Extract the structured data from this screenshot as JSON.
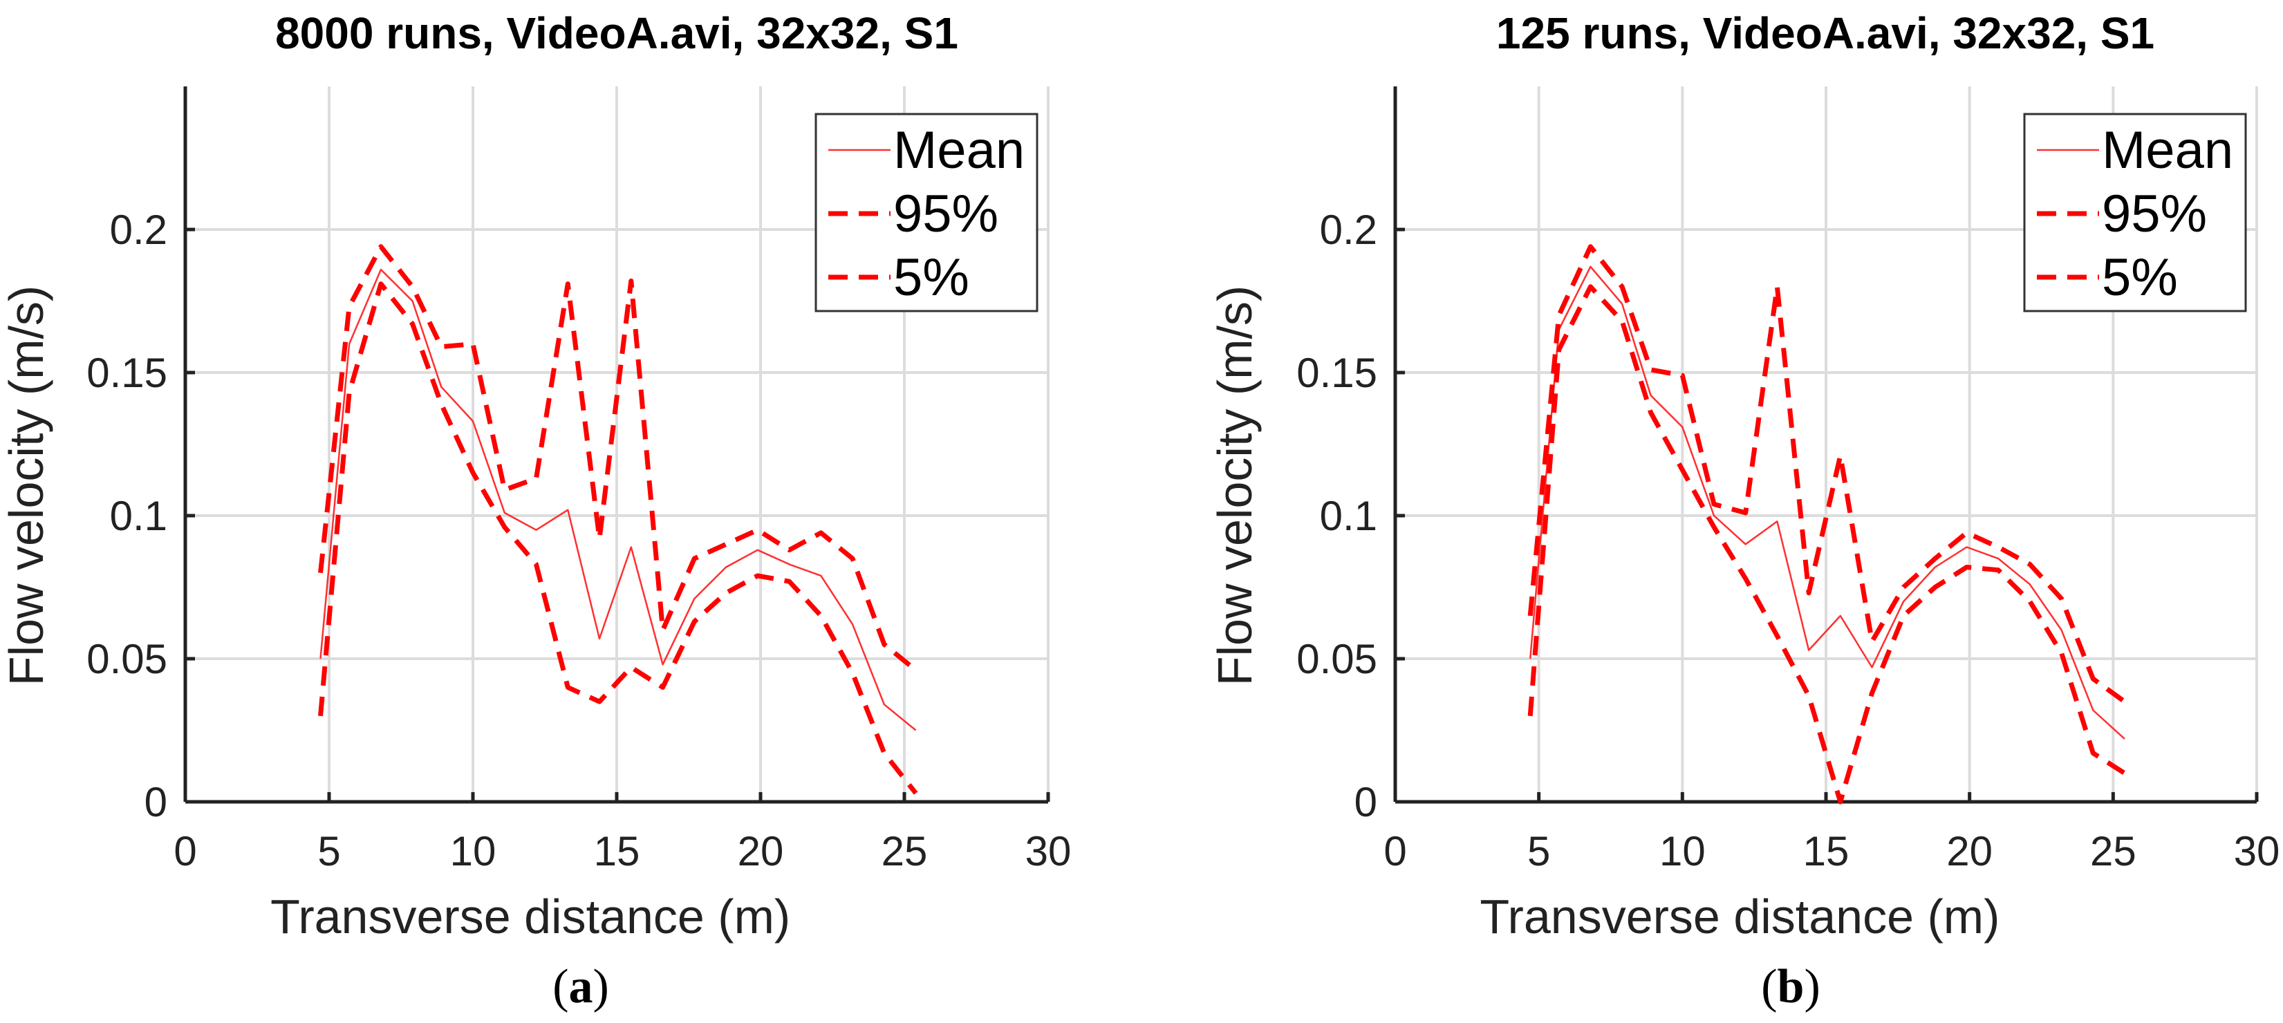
{
  "chart_data": [
    {
      "type": "line",
      "title": "8000 runs, VideoA.avi, 32x32, S1",
      "xlabel": "Transverse distance (m)",
      "ylabel": "Flow velocity (m/s)",
      "xlim": [
        0,
        30
      ],
      "ylim": [
        0,
        0.25
      ],
      "xticks": [
        0,
        5,
        10,
        15,
        20,
        25,
        30
      ],
      "yticks": [
        0,
        0.05,
        0.1,
        0.15,
        0.2
      ],
      "xtick_labels": [
        "0",
        "5",
        "10",
        "15",
        "20",
        "25",
        "30"
      ],
      "ytick_labels": [
        "0",
        "0.05",
        "0.1",
        "0.15",
        "0.2"
      ],
      "grid": true,
      "legend_position": "top-right",
      "caption_label": "a",
      "caption": "(a)",
      "series": [
        {
          "name": "Mean",
          "style": "solid",
          "color": "#ff3030",
          "x": [
            4.7,
            5.7,
            6.8,
            7.9,
            8.9,
            10.0,
            11.1,
            12.2,
            13.3,
            14.4,
            15.5,
            16.6,
            17.7,
            18.8,
            19.9,
            21.0,
            22.1,
            23.2,
            24.3,
            25.4
          ],
          "y": [
            0.05,
            0.16,
            0.186,
            0.175,
            0.145,
            0.133,
            0.101,
            0.095,
            0.102,
            0.057,
            0.089,
            0.048,
            0.071,
            0.082,
            0.088,
            0.083,
            0.079,
            0.062,
            0.034,
            0.025
          ]
        },
        {
          "name": "95%",
          "style": "dashed",
          "color": "#ff0000",
          "x": [
            4.7,
            5.7,
            6.8,
            7.9,
            8.9,
            10.0,
            11.1,
            12.2,
            13.3,
            14.4,
            15.5,
            16.6,
            17.7,
            18.8,
            19.9,
            21.0,
            22.1,
            23.2,
            24.3,
            25.4
          ],
          "y": [
            0.08,
            0.173,
            0.194,
            0.18,
            0.159,
            0.16,
            0.109,
            0.113,
            0.181,
            0.092,
            0.182,
            0.06,
            0.085,
            0.09,
            0.095,
            0.088,
            0.094,
            0.085,
            0.055,
            0.046
          ]
        },
        {
          "name": "5%",
          "style": "dashed",
          "color": "#ff0000",
          "x": [
            4.7,
            5.7,
            6.8,
            7.9,
            8.9,
            10.0,
            11.1,
            12.2,
            13.3,
            14.4,
            15.5,
            16.6,
            17.7,
            18.8,
            19.9,
            21.0,
            22.1,
            23.2,
            24.3,
            25.4
          ],
          "y": [
            0.03,
            0.143,
            0.181,
            0.167,
            0.139,
            0.115,
            0.096,
            0.083,
            0.04,
            0.035,
            0.047,
            0.04,
            0.063,
            0.073,
            0.079,
            0.077,
            0.065,
            0.045,
            0.017,
            0.003
          ]
        }
      ]
    },
    {
      "type": "line",
      "title": "125 runs, VideoA.avi, 32x32, S1",
      "xlabel": "Transverse distance (m)",
      "ylabel": "Flow velocity (m/s)",
      "xlim": [
        0,
        30
      ],
      "ylim": [
        0,
        0.25
      ],
      "xticks": [
        0,
        5,
        10,
        15,
        20,
        25,
        30
      ],
      "yticks": [
        0,
        0.05,
        0.1,
        0.15,
        0.2
      ],
      "xtick_labels": [
        "0",
        "5",
        "10",
        "15",
        "20",
        "25",
        "30"
      ],
      "ytick_labels": [
        "0",
        "0.05",
        "0.1",
        "0.15",
        "0.2"
      ],
      "grid": true,
      "legend_position": "top-right",
      "caption_label": "b",
      "caption": "(b)",
      "series": [
        {
          "name": "Mean",
          "style": "solid",
          "color": "#ff3030",
          "x": [
            4.7,
            5.7,
            6.8,
            7.9,
            8.9,
            10.0,
            11.1,
            12.2,
            13.3,
            14.4,
            15.5,
            16.6,
            17.7,
            18.8,
            19.9,
            21.0,
            22.1,
            23.2,
            24.3,
            25.4
          ],
          "y": [
            0.05,
            0.165,
            0.187,
            0.174,
            0.142,
            0.131,
            0.1,
            0.09,
            0.098,
            0.053,
            0.065,
            0.047,
            0.07,
            0.082,
            0.089,
            0.085,
            0.076,
            0.06,
            0.032,
            0.022
          ]
        },
        {
          "name": "95%",
          "style": "dashed",
          "color": "#ff0000",
          "x": [
            4.7,
            5.7,
            6.8,
            7.9,
            8.9,
            10.0,
            11.1,
            12.2,
            13.3,
            14.4,
            15.5,
            16.6,
            17.7,
            18.8,
            19.9,
            21.0,
            22.1,
            23.2,
            24.3,
            25.4
          ],
          "y": [
            0.065,
            0.17,
            0.194,
            0.18,
            0.151,
            0.149,
            0.104,
            0.101,
            0.18,
            0.073,
            0.121,
            0.056,
            0.075,
            0.085,
            0.094,
            0.089,
            0.083,
            0.071,
            0.043,
            0.035
          ]
        },
        {
          "name": "5%",
          "style": "dashed",
          "color": "#ff0000",
          "x": [
            4.7,
            5.7,
            6.8,
            7.9,
            8.9,
            10.0,
            11.1,
            12.2,
            13.3,
            14.4,
            15.5,
            16.6,
            17.7,
            18.8,
            19.9,
            21.0,
            22.1,
            23.2,
            24.3,
            25.4
          ],
          "y": [
            0.03,
            0.158,
            0.18,
            0.168,
            0.136,
            0.116,
            0.096,
            0.078,
            0.058,
            0.037,
            0.0,
            0.038,
            0.065,
            0.075,
            0.082,
            0.081,
            0.07,
            0.052,
            0.017,
            0.01
          ]
        }
      ]
    }
  ]
}
